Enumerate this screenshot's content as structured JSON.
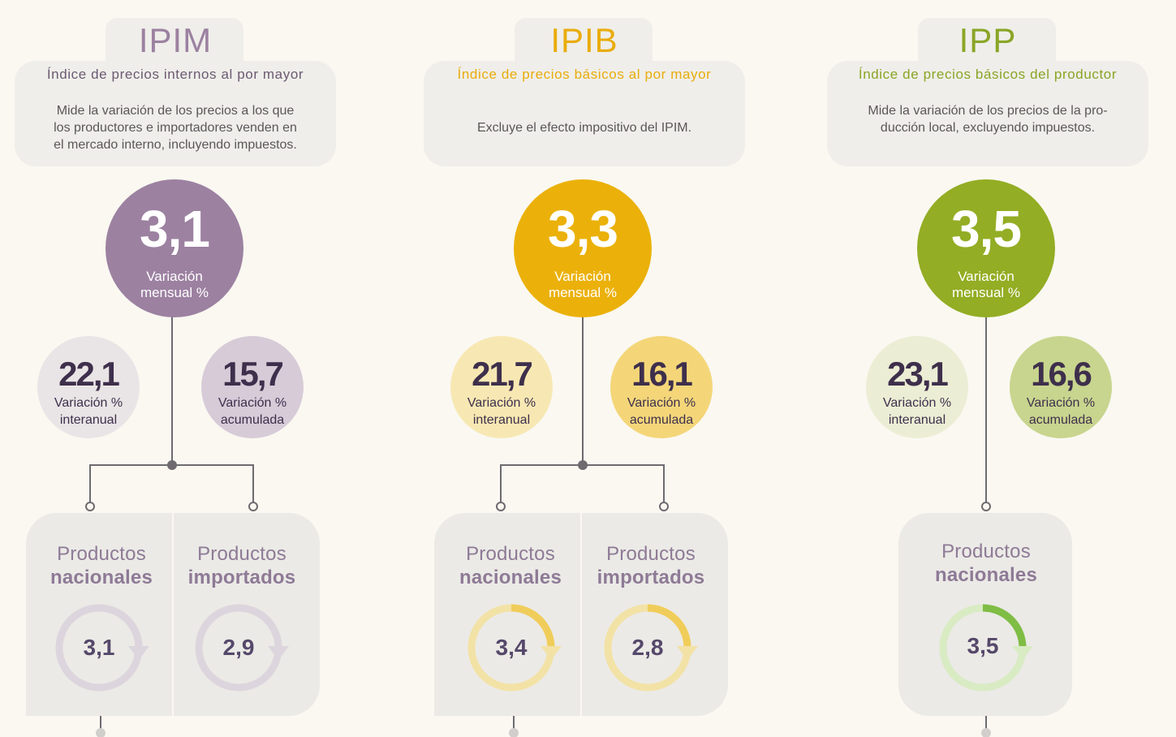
{
  "columns": [
    {
      "acronym": "IPIM",
      "subtitle": "Índice de precios internos al por mayor",
      "description": [
        "Mide la variación de los precios a los que",
        "los productores e importadores venden en",
        "el mercado interno, incluyendo impuestos."
      ],
      "monthly": {
        "value": "3,1",
        "label_line1": "Variación",
        "label_line2": "mensual %"
      },
      "yearly": {
        "value": "22,1",
        "label_line1": "Variación %",
        "label_line2": "interanual"
      },
      "cumulative": {
        "value": "15,7",
        "label_line1": "Variación %",
        "label_line2": "acumulada"
      },
      "products": [
        {
          "title_line1": "Productos",
          "title_line2": "nacionales",
          "value": "3,1"
        },
        {
          "title_line1": "Productos",
          "title_line2": "importados",
          "value": "2,9"
        }
      ],
      "colors": {
        "main": "#9c81a1",
        "text": "#8a6c92",
        "subtitle": "#6c5a73",
        "yearly_bg": "#e9e5e6",
        "cumulative_bg": "#d7cbd8",
        "gauge_track": "#ddd5dd",
        "gauge_fill": "#ddd5dd",
        "panel_text": "#8e7a96"
      }
    },
    {
      "acronym": "IPIB",
      "subtitle": "Índice de precios básicos al por mayor",
      "description": [
        "Excluye el efecto impositivo del IPIM."
      ],
      "monthly": {
        "value": "3,3",
        "label_line1": "Variación",
        "label_line2": "mensual %"
      },
      "yearly": {
        "value": "21,7",
        "label_line1": "Variación %",
        "label_line2": "interanual"
      },
      "cumulative": {
        "value": "16,1",
        "label_line1": "Variación %",
        "label_line2": "acumulada"
      },
      "products": [
        {
          "title_line1": "Productos",
          "title_line2": "nacionales",
          "value": "3,4"
        },
        {
          "title_line1": "Productos",
          "title_line2": "importados",
          "value": "2,8"
        }
      ],
      "colors": {
        "main": "#ebb10a",
        "text": "#e9ac0c",
        "subtitle": "#e9ac0c",
        "yearly_bg": "#f7e8b3",
        "cumulative_bg": "#f4d679",
        "gauge_track": "#f3e2a6",
        "gauge_fill": "#f0cd5a",
        "panel_text": "#8e7a96"
      }
    },
    {
      "acronym": "IPP",
      "subtitle": "Índice de precios básicos del productor",
      "description": [
        "Mide la variación de los precios de la pro-",
        "ducción local, excluyendo impuestos."
      ],
      "monthly": {
        "value": "3,5",
        "label_line1": "Variación",
        "label_line2": "mensual %"
      },
      "yearly": {
        "value": "23,1",
        "label_line1": "Variación %",
        "label_line2": "interanual"
      },
      "cumulative": {
        "value": "16,6",
        "label_line1": "Variación %",
        "label_line2": "acumulada"
      },
      "products": [
        {
          "title_line1": "Productos",
          "title_line2": "nacionales",
          "value": "3,5"
        }
      ],
      "colors": {
        "main": "#93ad24",
        "text": "#8aa526",
        "subtitle": "#8aa526",
        "yearly_bg": "#ebeed4",
        "cumulative_bg": "#c8d58e",
        "gauge_track": "#d9ebc3",
        "gauge_fill": "#7fbd45",
        "panel_text": "#8e7a96"
      }
    }
  ]
}
